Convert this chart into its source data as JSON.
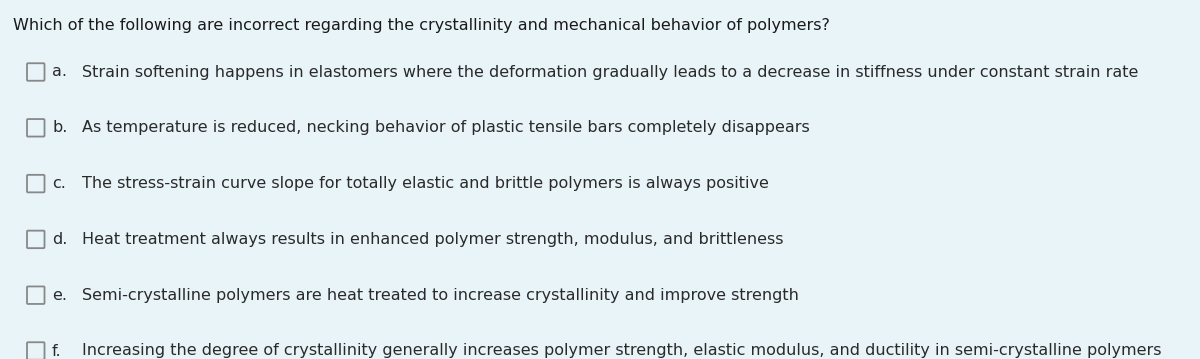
{
  "background_color": "#e8f4f8",
  "title": "Which of the following are incorrect regarding the crystallinity and mechanical behavior of polymers?",
  "title_fontsize": 11.5,
  "title_color": "#1a1a1a",
  "options": [
    {
      "label": "a.",
      "text": "Strain softening happens in elastomers where the deformation gradually leads to a decrease in stiffness under constant strain rate"
    },
    {
      "label": "b.",
      "text": "As temperature is reduced, necking behavior of plastic tensile bars completely disappears"
    },
    {
      "label": "c.",
      "text": "The stress-strain curve slope for totally elastic and brittle polymers is always positive"
    },
    {
      "label": "d.",
      "text": "Heat treatment always results in enhanced polymer strength, modulus, and brittleness"
    },
    {
      "label": "e.",
      "text": "Semi-crystalline polymers are heat treated to increase crystallinity and improve strength"
    },
    {
      "label": "f.",
      "text": "Increasing the degree of crystallinity generally increases polymer strength, elastic modulus, and ductility in semi-crystalline polymers"
    }
  ],
  "option_fontsize": 11.5,
  "text_color": "#2a2a2a",
  "checkbox_edge_color": "#888888",
  "checkbox_face_color": "#e8f4f8",
  "checkbox_linewidth": 1.3,
  "fig_width": 12.0,
  "fig_height": 3.59,
  "dpi": 100
}
